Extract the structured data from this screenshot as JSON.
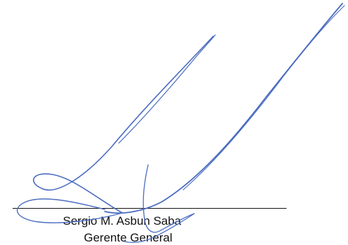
{
  "signature": {
    "signer_name": "Sergio M. Asbun Saba",
    "signer_title": "Gerente General",
    "ink_color": "#4a6cc0",
    "text_color": "#111111"
  }
}
